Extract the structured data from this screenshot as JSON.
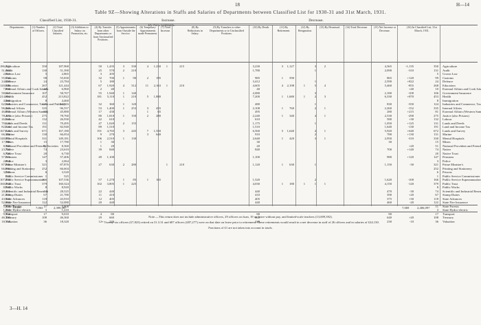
{
  "header": {
    "page_number": "18",
    "sheet_ref": "H—14",
    "title": "Table 9Z—Showing Alterations in Staffs and Salaries of Departments between Classified List for 1930-31 and 31st March, 1931."
  },
  "groups": {
    "classified_list": "Classified List, 1930-31.",
    "increase": "Increase.",
    "decrease": "Decrease.",
    "new_entrants": "By New Entrants."
  },
  "column_heads": [
    "Departments.",
    "(1) Number of Officers.",
    "(2) Total Classified Salaries.",
    "(3) Additions to Salary on Promotion, etc.",
    "(4) By Transfer from other Departments or from Unclassified Positions.",
    "(5) Appointments from Outside the Service.",
    "(6) Temporary Appointments made Permanent.",
    "(7) Total Increase.",
    "(8) By Reductions in Salary.",
    "(9) By Transfers to other Departments or to Unclassified Positions.",
    "(10) By Death.",
    "(11) By Retirement.",
    "(12) By Resignation.",
    "(13) By Dismissal.",
    "(14) Total Decrease.",
    "(15) Net Increase or Decrease.",
    "(16) In Classified List, 31st March, 1931."
  ],
  "sub_heads": [
    "Officers",
    "Salaries",
    "Officers",
    "Salaries",
    "Officers",
    "Salaries",
    "Officers",
    "Salaries"
  ],
  "departments": [
    "Agriculture",
    "Audit",
    "Crown Law",
    "Customs",
    "Defence",
    "Education",
    "External Affairs and Cook Islands",
    "Government Insurance",
    "Health",
    "Immigration",
    "Industries and Commerce, Tourist and Publicity",
    "Internal Affairs",
    "External Affairs (Western Samoa)",
    "Justice (also Prisons)",
    "Labour",
    "Lands and Deeds",
    "Land and Income Tax",
    "Lands and Survey",
    "Marine",
    "Mental Hospitals",
    "Mines",
    "National Provident and Friendly Societies",
    "Native",
    "Native Trust",
    "Pensions",
    "Police",
    "Prime Minister's",
    "Printing and Stationery",
    "Prisons",
    "Public Service Commissioner",
    "Public Service Superannuation",
    "Public Trust",
    "Public Works",
    "Scientific and Industrial Research",
    "Stamp Duties",
    "State Advances",
    "State Fire Insurance",
    "State Forests",
    "State Hydro-electric",
    "Transport",
    "Treasury",
    "Valuation"
  ],
  "columns": [
    {
      "id": "officers-1930",
      "values": [
        "350",
        "130",
        "5",
        "98",
        "24",
        "267",
        "10",
        "107",
        "452",
        "8",
        "125",
        "335",
        "80",
        "275",
        "132",
        "131",
        "191",
        "671",
        "130",
        "331",
        "15",
        "51",
        "74",
        "20",
        "147",
        "3",
        "321",
        "252",
        "6",
        "1",
        "166",
        "379",
        "8",
        "74",
        "67",
        "118",
        "122",
        "11",
        "3",
        "17",
        "108",
        "36"
      ]
    },
    {
      "id": "salaries-1930",
      "values": [
        "187,968",
        "51,390",
        "2,865",
        "55,830",
        "23,784",
        "121,444",
        "6,960",
        "58,767",
        "213,822",
        "4,460",
        "62,916",
        "96,557",
        "45,880",
        "78,760",
        "26,930",
        "70,495",
        "82,940",
        "167,180",
        "66,054",
        "149,181",
        "17,780",
        "8,360",
        "23,610",
        "6,730",
        "57,406",
        "2,064",
        "87,876",
        "66,604",
        "3,520",
        "525",
        "107,536",
        "160,324",
        "8,920",
        "28,525",
        "21,780",
        "43,910",
        "52,080",
        "5,808",
        "1,210",
        "9,010",
        "46,360",
        "18,320"
      ]
    },
    {
      "id": "additions-officers",
      "values": [
        "50",
        "25",
        "3",
        "32",
        "5",
        "67",
        "2",
        "55",
        "181",
        "",
        "32",
        "53",
        "17",
        "80",
        "42",
        "47",
        "89",
        "191",
        "9",
        "106",
        "1",
        "1",
        "39",
        "",
        "49",
        "",
        "27",
        "",
        "",
        "",
        "57",
        "102",
        "",
        "22",
        "11",
        "12",
        "20",
        "",
        "",
        "4",
        "29",
        "12"
      ]
    },
    {
      "id": "additions-salaries",
      "values": [
        "1,435",
        "570",
        "205",
        "700",
        "180",
        "1,920",
        "40",
        "1,940",
        "5,110",
        "",
        "360",
        "1,400",
        "430",
        "1,810",
        "610",
        "1,020",
        "1,510",
        "4,765",
        "270",
        "2,510",
        "30",
        "20",
        "840",
        "",
        "1,100",
        "",
        "630",
        "",
        "",
        "",
        "1,270",
        "3,805",
        "",
        "440",
        "410",
        "405",
        "440",
        "",
        "",
        "80",
        "660",
        "220"
      ]
    },
    {
      "id": "transfer-officers",
      "values": [
        "3",
        "2",
        "",
        "1",
        "",
        "4",
        "",
        "1",
        "1",
        "",
        "1",
        "1",
        "",
        "1",
        "",
        "2",
        "",
        "3",
        "",
        "1",
        "",
        "",
        "",
        "",
        "",
        "",
        "2",
        "",
        "",
        "",
        "1",
        "1",
        "",
        "",
        "",
        "",
        "",
        "",
        "",
        "",
        "",
        ""
      ]
    },
    {
      "id": "transfer-salaries",
      "values": [
        "330",
        "210",
        "",
        "90",
        "",
        "312",
        "",
        "140",
        "210",
        "",
        "120",
        "253",
        "",
        "150",
        "",
        "155",
        "",
        "245",
        "",
        "130",
        "",
        "",
        "",
        "",
        "",
        "",
        "280",
        "",
        "",
        "",
        "85",
        "225",
        "",
        "",
        "",
        "",
        "",
        "",
        "",
        "",
        "",
        ""
      ]
    },
    {
      "id": "outside-officers",
      "values": [
        "4",
        "",
        "",
        "2",
        "",
        "11",
        "",
        "",
        "5",
        "",
        "",
        "3",
        "1",
        "2",
        "",
        "",
        "",
        "7",
        "3",
        "",
        "",
        "",
        "",
        "",
        "",
        "",
        "",
        "",
        "",
        "",
        "1",
        "",
        "",
        "",
        "",
        "",
        "",
        "",
        "",
        "",
        "",
        ""
      ]
    },
    {
      "id": "outside-salaries",
      "values": [
        "1,250",
        "",
        "",
        "195",
        "",
        "2,163",
        "",
        "",
        "1,880",
        "",
        "",
        "455",
        "65",
        "280",
        "",
        "",
        "",
        "1,550",
        "640",
        "",
        "",
        "",
        "",
        "",
        "",
        "",
        "",
        "",
        "",
        "",
        "165",
        "",
        "",
        "",
        "",
        "",
        "",
        "",
        "",
        "",
        "",
        ""
      ]
    },
    {
      "id": "temporary-officers",
      "values": [
        "1",
        "",
        "",
        "",
        "",
        "1",
        "",
        "",
        "",
        "",
        "",
        "",
        "",
        "",
        "",
        "",
        "",
        "",
        "",
        "",
        "",
        "",
        "",
        "",
        "",
        "",
        "1",
        "",
        "",
        "",
        "",
        "",
        "",
        "",
        "",
        "",
        "",
        "",
        "",
        "",
        "",
        ""
      ]
    },
    {
      "id": "temporary-salaries",
      "values": [
        "215",
        "",
        "",
        "",
        "",
        "210",
        "",
        "",
        "",
        "",
        "",
        "",
        "",
        "",
        "",
        "",
        "",
        "",
        "",
        "",
        "",
        "",
        "",
        "",
        "",
        "",
        "210",
        "",
        "",
        "",
        "",
        "",
        "",
        "",
        "",
        "",
        "",
        "",
        "",
        "",
        "",
        ""
      ]
    },
    {
      "id": "total-increase",
      "values": [
        "3,230",
        "1,780",
        "",
        "985",
        "3,412",
        "4,605",
        "40",
        "2,080",
        "7,200",
        "",
        "480",
        "2,108",
        "495",
        "2,240",
        "610",
        "1,175",
        "1,510",
        "6,560",
        "910",
        "2,640",
        "30",
        "20",
        "840",
        "",
        "1,100",
        "",
        "1,120",
        "",
        "",
        "",
        "1,520",
        "4,030",
        "",
        "440",
        "410",
        "405",
        "440",
        "",
        "",
        "80",
        "660",
        "220"
      ]
    },
    {
      "id": "reductions",
      "values": [
        "",
        "",
        "",
        "",
        "",
        "",
        "",
        "",
        "",
        "",
        "",
        "",
        "",
        "",
        "",
        "",
        "",
        "",
        "",
        "",
        "",
        "",
        "",
        "",
        "",
        "",
        "",
        "",
        "",
        "",
        "",
        "",
        "",
        "",
        "",
        "",
        "",
        "",
        "",
        "",
        "",
        ""
      ]
    },
    {
      "id": "transfers-out-officers",
      "values": [
        "3",
        "",
        "",
        "1",
        "",
        "4",
        "",
        "",
        "1",
        "",
        "",
        "1",
        "",
        "1",
        "",
        "",
        "",
        "5",
        "",
        "1",
        "",
        "",
        "",
        "",
        "",
        "",
        "1",
        "",
        "",
        "",
        "",
        "1",
        "",
        "",
        "",
        "",
        "",
        "",
        "",
        "",
        "",
        ""
      ]
    },
    {
      "id": "transfers-out-salaries",
      "values": [
        "1,127",
        "",
        "",
        "590",
        "",
        "2,198",
        "",
        "",
        "1,680",
        "",
        "",
        "760",
        "",
        "340",
        "",
        "",
        "",
        "1,640",
        "",
        "420",
        "",
        "",
        "",
        "",
        "",
        "",
        "630",
        "",
        "",
        "",
        "",
        "180",
        "",
        "",
        "",
        "",
        "",
        "",
        "",
        "",
        "",
        ""
      ]
    },
    {
      "id": "death",
      "values": [
        "",
        "",
        "",
        "",
        "",
        "1",
        "",
        "",
        "1",
        "",
        "",
        "",
        "",
        "",
        "",
        "",
        "",
        "",
        "",
        "",
        "",
        "",
        "",
        "",
        "",
        "",
        "",
        "",
        "",
        "",
        "",
        "1",
        "",
        "",
        "",
        "",
        "",
        "",
        "",
        "",
        "",
        ""
      ]
    },
    {
      "id": "retirement",
      "values": [
        "3",
        "1",
        "",
        "",
        "1",
        "5",
        "",
        "3",
        "2",
        "",
        "1",
        "2",
        "",
        "4",
        "",
        "1",
        "",
        "4",
        "2",
        "3",
        "",
        "",
        "",
        "",
        "",
        "",
        "1",
        "",
        "",
        "",
        "2",
        "1",
        "",
        "",
        "",
        "",
        "",
        "",
        "",
        "",
        "",
        ""
      ]
    },
    {
      "id": "resignation",
      "values": [
        "2",
        "",
        "",
        "",
        "",
        "4",
        "",
        "",
        "3",
        "",
        "",
        "1",
        "",
        "1",
        "",
        "",
        "",
        "1",
        "",
        "1",
        "",
        "",
        "",
        "",
        "",
        "",
        "",
        "",
        "",
        "",
        "",
        "1",
        "",
        "",
        "",
        "",
        "",
        "",
        "",
        "",
        "",
        ""
      ]
    },
    {
      "id": "dismissal",
      "values": [
        "",
        "",
        "",
        "",
        "",
        "",
        "",
        "",
        "",
        "",
        "",
        "",
        "",
        "",
        "",
        "",
        "",
        "",
        "",
        "",
        "",
        "",
        "",
        "",
        "",
        "",
        "",
        "",
        "",
        "",
        "",
        "",
        "",
        "",
        "",
        "",
        "",
        "",
        "",
        "",
        "",
        ""
      ]
    },
    {
      "id": "total-decrease",
      "values": [
        "4,365",
        "2,090",
        "",
        "865",
        "2,590",
        "5,460",
        "",
        "2,180",
        "6,330",
        "",
        "830",
        "2,260",
        "280",
        "2,530",
        "580",
        "1,050",
        "1,640",
        "5,920",
        "780",
        "2,950",
        "30",
        "",
        "700",
        "",
        "980",
        "",
        "1,150",
        "",
        "",
        "",
        "1,620",
        "4,150",
        "",
        "470",
        "390",
        "375",
        "460",
        "",
        "",
        "80",
        "640",
        "230"
      ]
    },
    {
      "id": "net-change",
      "values": [
        "-1,135",
        "-310",
        "",
        "+120",
        "+822",
        "-855",
        "+40",
        "-100",
        "+870",
        "",
        "-350",
        "-152",
        "+215",
        "-290",
        "+30",
        "+125",
        "-130",
        "+640",
        "+130",
        "-310",
        "",
        "+20",
        "+140",
        "",
        "+120",
        "",
        "-30",
        "",
        "",
        "",
        "-100",
        "-120",
        "",
        "-30",
        "+20",
        "+30",
        "-20",
        "",
        "",
        "",
        "+20",
        "-10"
      ]
    },
    {
      "id": "officers-1931",
      "values": [
        "350",
        "131",
        "5",
        "99",
        "24",
        "268",
        "10",
        "106",
        "453",
        "8",
        "124",
        "335",
        "81",
        "275",
        "132",
        "131",
        "191",
        "672",
        "131",
        "330",
        "15",
        "51",
        "74",
        "20",
        "147",
        "3",
        "321",
        "252",
        "6",
        "1",
        "166",
        "379",
        "8",
        "74",
        "67",
        "118",
        "122",
        "11",
        "3",
        "17",
        "108",
        "36"
      ]
    },
    {
      "id": "salaries-1931",
      "values": [
        "186,833",
        "51,080",
        "2,865",
        "55,950",
        "24,606",
        "120,589",
        "7,000",
        "58,667",
        "214,692",
        "4,460",
        "62,566",
        "96,405",
        "46,095",
        "78,470",
        "26,960",
        "70,620",
        "82,810",
        "167,820",
        "66,184",
        "148,871",
        "17,780",
        "8,380",
        "23,750",
        "6,730",
        "57,526",
        "2,064",
        "87,846",
        "66,604",
        "3,520",
        "525",
        "107,436",
        "160,204",
        "8,920",
        "28,495",
        "21,800",
        "43,940",
        "52,060",
        "5,808",
        "1,210",
        "9,010",
        "46,380",
        "18,310"
      ]
    }
  ],
  "totals": {
    "label": "Totals",
    "officers_1930": "7,063",
    "salaries_1930": "2,399,397",
    "officers_1931": "7,069",
    "salaries_1931": "2,406,097"
  },
  "notes": [
    "Note.—This return does not include administrative officers, 29 officers on loan, 19 on leave without pay, and limited-scale teachers (13,009,392).",
    "* Twenty-six officers (£7,823) retired on 31.3.31 and 687 officers (£87,277) were on that date on leave prior to retirement. These retirements would result in a net decrease in staff of 26 officers and in salaries of £24,130.",
    "Fractions of £1 are not taken into account in totals."
  ],
  "footer_ref": "3—H. 14"
}
